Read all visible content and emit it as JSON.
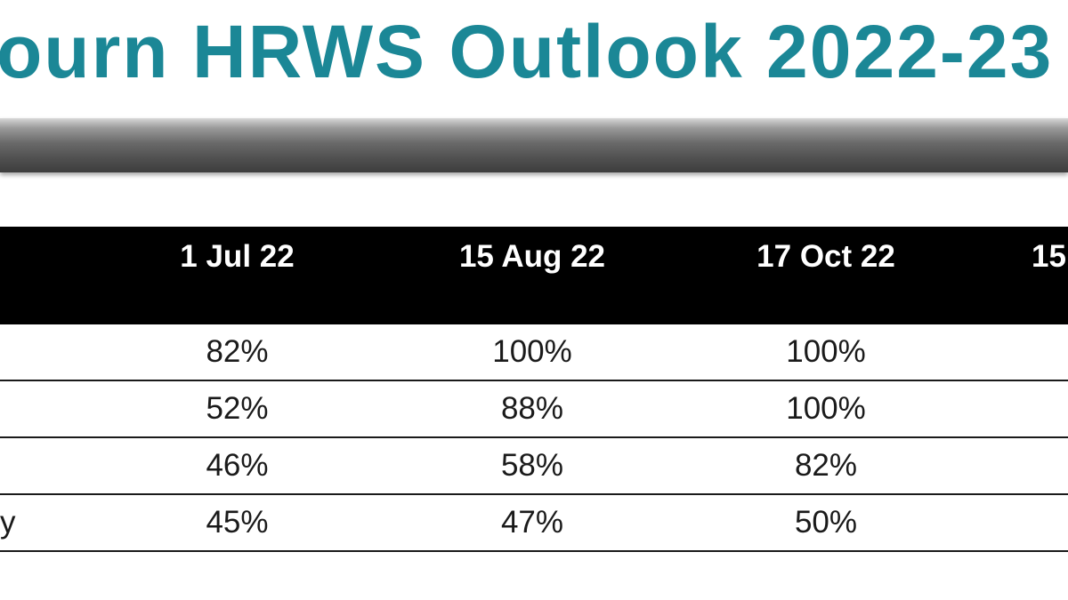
{
  "title": "ourn HRWS Outlook 2022-23",
  "table": {
    "columns": [
      "",
      "1 Jul 22",
      "15 Aug 22",
      "17 Oct 22",
      "15"
    ],
    "rows": [
      {
        "label": "",
        "values": [
          "82%",
          "100%",
          "100%",
          ""
        ]
      },
      {
        "label": "",
        "values": [
          "52%",
          "88%",
          "100%",
          ""
        ]
      },
      {
        "label": "",
        "values": [
          "46%",
          "58%",
          "82%",
          ""
        ]
      },
      {
        "label": "y",
        "values": [
          "45%",
          "47%",
          "50%",
          ""
        ]
      }
    ]
  }
}
